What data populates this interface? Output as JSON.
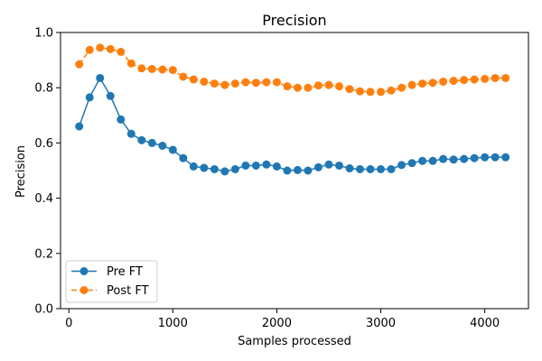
{
  "chart_data": {
    "type": "line",
    "title": "Precision",
    "xlabel": "Samples processed",
    "ylabel": "Precision",
    "xlim": [
      -80,
      4420
    ],
    "ylim": [
      0.0,
      1.0
    ],
    "xticks": [
      0,
      1000,
      2000,
      3000,
      4000
    ],
    "yticks": [
      0.0,
      0.2,
      0.4,
      0.6,
      0.8,
      1.0
    ],
    "xtick_labels": [
      "0",
      "1000",
      "2000",
      "3000",
      "4000"
    ],
    "ytick_labels": [
      "0.0",
      "0.2",
      "0.4",
      "0.6",
      "0.8",
      "1.0"
    ],
    "grid": false,
    "legend_position": "lower-left",
    "x": [
      100,
      200,
      300,
      400,
      500,
      600,
      700,
      800,
      900,
      1000,
      1100,
      1200,
      1300,
      1400,
      1500,
      1600,
      1700,
      1800,
      1900,
      2000,
      2100,
      2200,
      2300,
      2400,
      2500,
      2600,
      2700,
      2800,
      2900,
      3000,
      3100,
      3200,
      3300,
      3400,
      3500,
      3600,
      3700,
      3800,
      3900,
      4000,
      4100,
      4200
    ],
    "series": [
      {
        "name": "Pre FT",
        "color": "#1f77b4",
        "linestyle": "solid",
        "marker": "circle",
        "values": [
          0.66,
          0.765,
          0.835,
          0.77,
          0.685,
          0.633,
          0.61,
          0.6,
          0.59,
          0.575,
          0.545,
          0.515,
          0.51,
          0.505,
          0.497,
          0.505,
          0.518,
          0.518,
          0.522,
          0.515,
          0.5,
          0.502,
          0.5,
          0.512,
          0.522,
          0.518,
          0.508,
          0.505,
          0.505,
          0.505,
          0.505,
          0.52,
          0.527,
          0.535,
          0.535,
          0.542,
          0.54,
          0.542,
          0.545,
          0.548,
          0.548,
          0.548
        ]
      },
      {
        "name": "Post FT",
        "color": "#ff7f0e",
        "linestyle": "dashed",
        "marker": "circle",
        "values": [
          0.885,
          0.937,
          0.945,
          0.94,
          0.93,
          0.888,
          0.87,
          0.868,
          0.866,
          0.864,
          0.84,
          0.83,
          0.822,
          0.815,
          0.81,
          0.815,
          0.82,
          0.818,
          0.82,
          0.82,
          0.805,
          0.8,
          0.8,
          0.808,
          0.81,
          0.805,
          0.795,
          0.787,
          0.785,
          0.785,
          0.79,
          0.8,
          0.81,
          0.815,
          0.818,
          0.822,
          0.825,
          0.828,
          0.83,
          0.832,
          0.835,
          0.835
        ]
      }
    ]
  }
}
